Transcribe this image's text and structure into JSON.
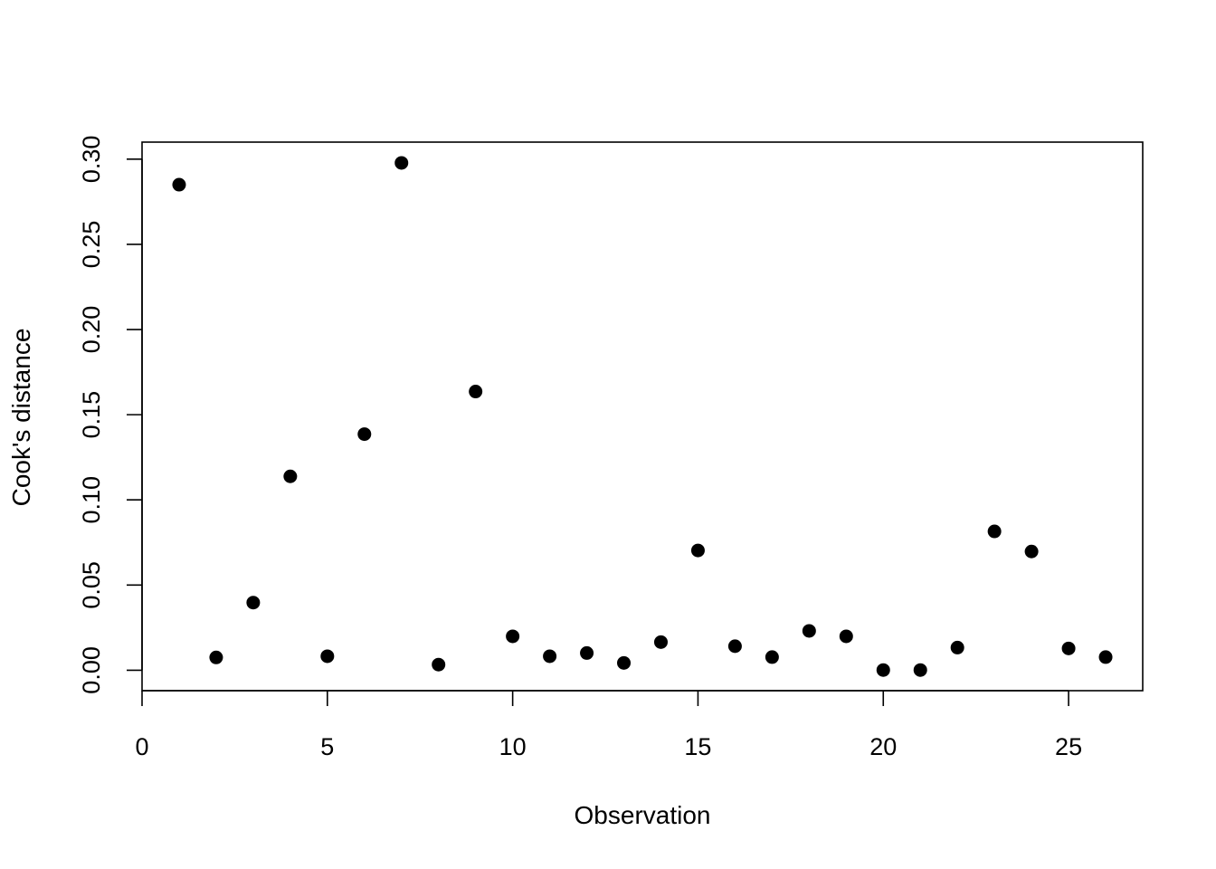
{
  "chart_data": {
    "type": "scatter",
    "title": "",
    "xlabel": "Observation",
    "ylabel": "Cook's distance",
    "xlim": [
      0,
      27
    ],
    "ylim": [
      -0.012,
      0.31
    ],
    "x_ticks": [
      0,
      5,
      10,
      15,
      20,
      25
    ],
    "x_tick_labels": [
      "0",
      "5",
      "10",
      "15",
      "20",
      "25"
    ],
    "y_ticks": [
      0.0,
      0.05,
      0.1,
      0.15,
      0.2,
      0.25,
      0.3
    ],
    "y_tick_labels": [
      "0.00",
      "0.05",
      "0.10",
      "0.15",
      "0.20",
      "0.25",
      "0.30"
    ],
    "grid": false,
    "legend": "none",
    "point_color": "#000000",
    "x": [
      1,
      2,
      3,
      4,
      5,
      6,
      7,
      8,
      9,
      10,
      11,
      12,
      13,
      14,
      15,
      16,
      17,
      18,
      19,
      20,
      21,
      22,
      23,
      24,
      25,
      26
    ],
    "y": [
      0.285,
      0.0075,
      0.0397,
      0.1138,
      0.0082,
      0.1386,
      0.2978,
      0.0033,
      0.1636,
      0.0199,
      0.0082,
      0.0101,
      0.0043,
      0.0165,
      0.0703,
      0.0141,
      0.0077,
      0.0231,
      0.0199,
      0.0001,
      0.0001,
      0.0133,
      0.0815,
      0.0697,
      0.0128,
      0.0077
    ]
  }
}
